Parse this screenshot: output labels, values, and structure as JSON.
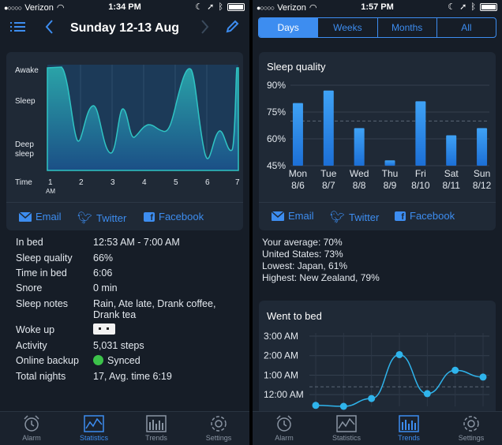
{
  "colors": {
    "accent": "#3d8df0",
    "background": "#161d27",
    "card": "#1f2936"
  },
  "left": {
    "status": {
      "carrier": "Verizon",
      "time": "1:34 PM"
    },
    "header": {
      "title": "Sunday 12-13 Aug"
    },
    "hypnogram": {
      "y_labels": [
        "Awake",
        "Sleep",
        "Deep sleep"
      ],
      "x_title": "Time",
      "x_labels": [
        "1",
        "2",
        "3",
        "4",
        "5",
        "6",
        "7"
      ],
      "x_sub": "AM"
    },
    "share": {
      "email": "Email",
      "twitter": "Twitter",
      "facebook": "Facebook"
    },
    "details": [
      {
        "label": "In bed",
        "value": "12:53 AM - 7:00 AM"
      },
      {
        "label": "Sleep quality",
        "value": "66%"
      },
      {
        "label": "Time in bed",
        "value": "6:06"
      },
      {
        "label": "Snore",
        "value": "0 min"
      },
      {
        "label": "Sleep notes",
        "value": "Rain, Ate late, Drank coffee,",
        "value2": "Drank tea"
      },
      {
        "label": "Woke up",
        "value": ""
      },
      {
        "label": "Activity",
        "value": "5,031 steps"
      },
      {
        "label": "Online backup",
        "value": "Synced"
      },
      {
        "label": "Total nights",
        "value": "17, Avg. time 6:19"
      }
    ],
    "tabs": [
      "Alarm",
      "Statistics",
      "Trends",
      "Settings"
    ]
  },
  "right": {
    "status": {
      "carrier": "Verizon",
      "time": "1:57 PM"
    },
    "segments": [
      "Days",
      "Weeks",
      "Months",
      "All"
    ],
    "share": {
      "email": "Email",
      "twitter": "Twitter",
      "facebook": "Facebook"
    },
    "averages": [
      "Your average: 70%",
      "United States: 73%",
      "Lowest: Japan, 61%",
      "Highest: New Zealand, 79%"
    ],
    "tabs": [
      "Alarm",
      "Statistics",
      "Trends",
      "Settings"
    ]
  },
  "chart_data": [
    {
      "type": "bar",
      "title": "Sleep quality",
      "categories": [
        "Mon 8/6",
        "Tue 8/7",
        "Wed 8/8",
        "Thu 8/9",
        "Fri 8/10",
        "Sat 8/11",
        "Sun 8/12"
      ],
      "day_labels": [
        "Mon",
        "Tue",
        "Wed",
        "Thu",
        "Fri",
        "Sat",
        "Sun"
      ],
      "date_labels": [
        "8/6",
        "8/7",
        "8/8",
        "8/9",
        "8/10",
        "8/11",
        "8/12"
      ],
      "values": [
        80,
        87,
        66,
        48,
        81,
        62,
        66
      ],
      "ylim": [
        45,
        90
      ],
      "yticks": [
        "90%",
        "75%",
        "60%",
        "45%"
      ],
      "yticks_values": [
        90,
        75,
        60,
        45
      ],
      "reference_line": 70
    },
    {
      "type": "line",
      "title": "Went to bed",
      "yticks": [
        "3:00 AM",
        "2:00 AM",
        "1:00 AM",
        "12:00 AM"
      ],
      "yticks_values": [
        3,
        2,
        1,
        0
      ],
      "ylim": [
        -0.6,
        3.0
      ],
      "values": [
        -0.55,
        -0.6,
        -0.2,
        2.05,
        0.05,
        1.25,
        0.9
      ],
      "reference_line": 0.4
    }
  ]
}
